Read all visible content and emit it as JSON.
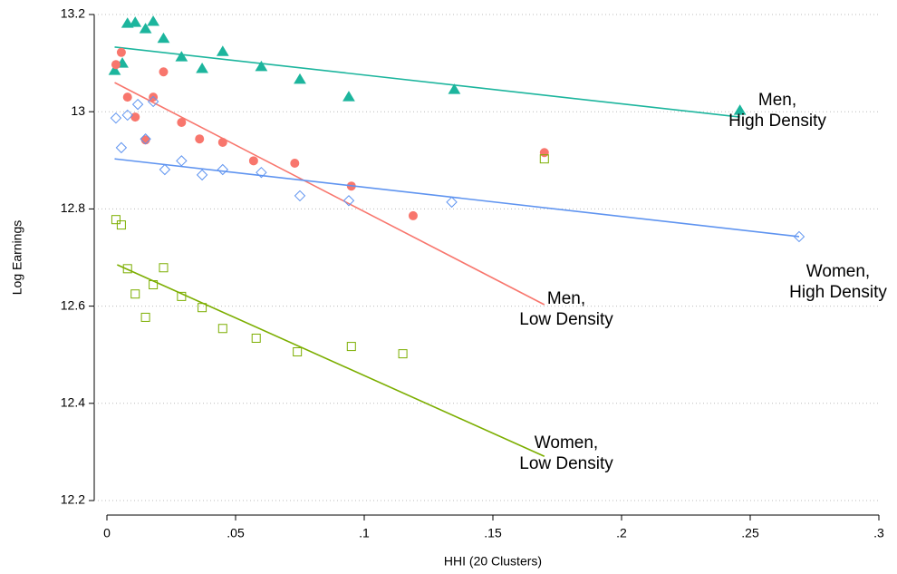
{
  "chart_data": {
    "type": "scatter",
    "x_label": "HHI (20 Clusters)",
    "y_label": "Log Earnings",
    "xlim": [
      0,
      0.3
    ],
    "ylim": [
      12.2,
      13.2
    ],
    "xticks": [
      0,
      {
        "value": 0.05,
        "label": ".05"
      },
      {
        "value": 0.1,
        "label": ".1"
      },
      {
        "value": 0.15,
        "label": ".15"
      },
      {
        "value": 0.2,
        "label": ".2"
      },
      {
        "value": 0.25,
        "label": ".25"
      },
      {
        "value": 0.3,
        "label": ".3"
      }
    ],
    "yticks": [
      12.2,
      12.4,
      12.6,
      12.8,
      13,
      13.2
    ],
    "grid": true,
    "series": [
      {
        "label": [
          "Men,",
          "High Density"
        ],
        "color": "#1cb59d",
        "marker": "triangle",
        "filled": true,
        "x": [
          0.003,
          0.006,
          0.008,
          0.011,
          0.015,
          0.018,
          0.022,
          0.029,
          0.037,
          0.045,
          0.06,
          0.075,
          0.094,
          0.135,
          0.246
        ],
        "values": [
          13.084,
          13.099,
          13.181,
          13.183,
          13.17,
          13.185,
          13.15,
          13.112,
          13.088,
          13.123,
          13.092,
          13.066,
          13.03,
          13.045,
          13.002
        ],
        "fit_x": [
          0.003,
          0.246
        ],
        "fit_values": [
          13.133,
          12.989
        ]
      },
      {
        "label": [
          "Men,",
          "Low Density"
        ],
        "color": "#f8766d",
        "marker": "circle",
        "filled": true,
        "x": [
          0.0035,
          0.0056,
          0.008,
          0.011,
          0.015,
          0.018,
          0.022,
          0.029,
          0.036,
          0.045,
          0.057,
          0.073,
          0.095,
          0.119,
          0.17
        ],
        "values": [
          13.097,
          13.122,
          13.03,
          12.989,
          12.942,
          13.03,
          13.082,
          12.978,
          12.944,
          12.937,
          12.899,
          12.894,
          12.847,
          12.786,
          12.916
        ],
        "fit_x": [
          0.003,
          0.17
        ],
        "fit_values": [
          13.06,
          12.603
        ]
      },
      {
        "label": [
          "Women,",
          "High Density"
        ],
        "color": "#5f94f0",
        "marker": "diamond",
        "filled": false,
        "x": [
          0.0035,
          0.0056,
          0.008,
          0.012,
          0.015,
          0.018,
          0.0225,
          0.029,
          0.037,
          0.045,
          0.06,
          0.075,
          0.094,
          0.134,
          0.269
        ],
        "values": [
          12.987,
          12.926,
          12.993,
          13.015,
          12.944,
          13.021,
          12.881,
          12.899,
          12.87,
          12.881,
          12.875,
          12.827,
          12.817,
          12.814,
          12.743
        ],
        "fit_x": [
          0.003,
          0.269
        ],
        "fit_values": [
          12.903,
          12.743
        ]
      },
      {
        "label": [
          "Women,",
          "Low Density"
        ],
        "color": "#7cae00",
        "marker": "square",
        "filled": false,
        "x": [
          0.0035,
          0.0056,
          0.008,
          0.011,
          0.015,
          0.018,
          0.022,
          0.029,
          0.037,
          0.045,
          0.058,
          0.074,
          0.095,
          0.115,
          0.17
        ],
        "values": [
          12.778,
          12.767,
          12.677,
          12.625,
          12.577,
          12.644,
          12.679,
          12.62,
          12.597,
          12.554,
          12.534,
          12.506,
          12.517,
          12.502,
          12.903
        ],
        "fit_x": [
          0.004,
          0.17
        ],
        "fit_values": [
          12.685,
          12.291
        ]
      }
    ]
  }
}
